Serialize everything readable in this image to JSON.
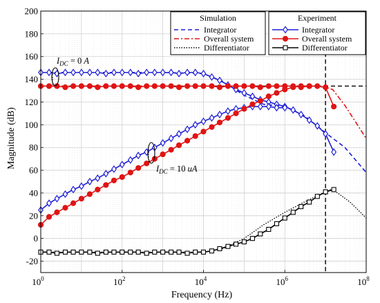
{
  "chart_data": {
    "type": "line",
    "xlabel": "Frequency (Hz)",
    "ylabel": "Magnitude (dB)",
    "xscale": "log",
    "xlim": [
      1,
      100000000
    ],
    "ylim": [
      -30,
      200
    ],
    "x_ticks": [
      {
        "value": 1,
        "base": "10",
        "exp": "0"
      },
      {
        "value": 100,
        "base": "10",
        "exp": "2"
      },
      {
        "value": 10000,
        "base": "10",
        "exp": "4"
      },
      {
        "value": 1000000,
        "base": "10",
        "exp": "6"
      },
      {
        "value": 100000000,
        "base": "10",
        "exp": "8"
      }
    ],
    "y_ticks": [
      "-20",
      "0",
      "20",
      "40",
      "60",
      "80",
      "100",
      "120",
      "140",
      "160",
      "180",
      "200"
    ],
    "grid": true,
    "legends": [
      {
        "title": "Simulation",
        "position": "top-center",
        "entries": [
          "Integrator",
          "Overall system",
          "Differentiator"
        ]
      },
      {
        "title": "Experiment",
        "position": "top-right",
        "entries": [
          "Integrator",
          "Overall system",
          "Differentiator"
        ]
      }
    ],
    "annotations": [
      {
        "sub_var": "I",
        "sub": "DC",
        "eq": " = 0  ",
        "unit": "A",
        "x": 1.4,
        "y": 151
      },
      {
        "sub_var": "I",
        "sub": "DC",
        "eq": " = 10  ",
        "unit": "uA",
        "x": 800,
        "y": 54
      }
    ],
    "reference_lines": [
      {
        "orientation": "horizontal",
        "y": 134,
        "style": "dashed",
        "color": "#000000"
      },
      {
        "orientation": "vertical",
        "x": 10000000,
        "style": "dashed",
        "color": "#000000"
      }
    ],
    "series": [
      {
        "name": "Integrator",
        "group": "Simulation",
        "color": "#1f1fd6",
        "dash": "dashed",
        "marker": "none",
        "x": [
          1,
          10,
          100,
          1000,
          10000,
          30000,
          100000,
          300000,
          1000000,
          3000000,
          10000000,
          30000000,
          100000000
        ],
        "y": [
          146,
          146,
          146,
          146,
          145,
          138,
          126,
          118,
          116,
          108,
          93,
          80,
          58
        ]
      },
      {
        "name": "Overall system",
        "group": "Simulation",
        "color": "#e01414",
        "dash": "dashdot",
        "marker": "none",
        "x": [
          1,
          100,
          10000,
          1000000,
          5000000,
          10000000,
          15000000,
          30000000,
          100000000
        ],
        "y": [
          134,
          134,
          134,
          134,
          134,
          133,
          131,
          117,
          88
        ]
      },
      {
        "name": "Differentiator",
        "group": "Simulation",
        "color": "#000000",
        "dash": "dotted",
        "marker": "none",
        "x": [
          1,
          10,
          100,
          1000,
          10000,
          30000,
          100000,
          300000,
          1000000,
          3000000,
          10000000,
          13000000,
          20000000,
          40000000,
          100000000
        ],
        "y": [
          -12,
          -12,
          -12,
          -12,
          -12,
          -9,
          0,
          12,
          23,
          32,
          41,
          43,
          40,
          32,
          18
        ]
      },
      {
        "name": "Integrator",
        "group": "Experiment",
        "color": "#1f1fd6",
        "dash": "solid",
        "marker": "diamond",
        "x": [
          1,
          1.6,
          2.5,
          4,
          6.3,
          10,
          16,
          25,
          40,
          63,
          100,
          160,
          250,
          400,
          630,
          1000,
          1600,
          2500,
          4000,
          6300,
          10000,
          16000,
          25000,
          40000,
          63000,
          100000,
          160000,
          250000,
          400000,
          630000,
          1000000,
          1600000,
          2500000,
          4000000,
          6300000,
          10000000,
          16000000
        ],
        "y": [
          146,
          146,
          145,
          146,
          146,
          146,
          146,
          146,
          145,
          146,
          146,
          146,
          145,
          146,
          146,
          146,
          146,
          145,
          146,
          146,
          145,
          142,
          139,
          135,
          131,
          128,
          125,
          122,
          120,
          118,
          116,
          113,
          109,
          104,
          99,
          92,
          76
        ]
      },
      {
        "name": "Overall system",
        "group": "Experiment",
        "color": "#e01414",
        "dash": "solid",
        "marker": "circle",
        "x": [
          1,
          1.6,
          2.5,
          4,
          6.3,
          10,
          16,
          25,
          40,
          63,
          100,
          160,
          250,
          400,
          630,
          1000,
          1600,
          2500,
          4000,
          6300,
          10000,
          16000,
          25000,
          40000,
          63000,
          100000,
          160000,
          250000,
          400000,
          630000,
          1000000,
          1600000,
          2500000,
          4000000,
          6300000,
          10000000,
          16000000
        ],
        "y": [
          134,
          134,
          134,
          133,
          134,
          134,
          134,
          133,
          134,
          134,
          134,
          134,
          133,
          134,
          134,
          134,
          134,
          133,
          134,
          134,
          134,
          134,
          133,
          134,
          134,
          134,
          134,
          133,
          134,
          134,
          134,
          134,
          133,
          134,
          134,
          133,
          116
        ]
      },
      {
        "name": "Integrator",
        "group": "Experiment",
        "color": "#1f1fd6",
        "dash": "solid",
        "marker": "diamond",
        "x": [
          1,
          1.6,
          2.5,
          4,
          6.3,
          10,
          16,
          25,
          40,
          63,
          100,
          160,
          250,
          400,
          630,
          1000,
          1600,
          2500,
          4000,
          6300,
          10000,
          16000,
          25000,
          40000,
          63000,
          100000,
          160000,
          250000,
          400000,
          630000,
          1000000
        ],
        "y": [
          25,
          31,
          35,
          39,
          43,
          46,
          50,
          53,
          57,
          61,
          65,
          69,
          73,
          76,
          80,
          84,
          88,
          92,
          96,
          100,
          103,
          106,
          109,
          112,
          114,
          115,
          116,
          116,
          116,
          115,
          115
        ]
      },
      {
        "name": "Overall system",
        "group": "Experiment",
        "color": "#e01414",
        "dash": "solid",
        "marker": "circle",
        "x": [
          1,
          1.6,
          2.5,
          4,
          6.3,
          10,
          16,
          25,
          40,
          63,
          100,
          160,
          250,
          400,
          630,
          1000,
          1600,
          2500,
          4000,
          6300,
          10000,
          16000,
          25000,
          40000,
          63000,
          100000,
          160000,
          250000,
          400000,
          630000,
          1000000,
          1600000,
          2500000,
          4000000
        ],
        "y": [
          12,
          19,
          23,
          27,
          31,
          35,
          39,
          43,
          47,
          51,
          54,
          58,
          62,
          66,
          70,
          74,
          78,
          82,
          86,
          90,
          94,
          98,
          102,
          106,
          110,
          114,
          118,
          121,
          125,
          128,
          131,
          133,
          134,
          134
        ]
      },
      {
        "name": "Differentiator",
        "group": "Experiment",
        "color": "#000000",
        "dash": "solid",
        "marker": "square",
        "x": [
          1,
          1.6,
          2.5,
          4,
          6.3,
          10,
          16,
          25,
          40,
          63,
          100,
          160,
          250,
          400,
          630,
          1000,
          1600,
          2500,
          4000,
          6300,
          10000,
          16000,
          25000,
          40000,
          63000,
          100000,
          160000,
          250000,
          400000,
          630000,
          1000000,
          1600000,
          2500000,
          4000000,
          6300000,
          10000000,
          16000000
        ],
        "y": [
          -12,
          -12,
          -13,
          -12,
          -12,
          -12,
          -12,
          -13,
          -12,
          -12,
          -12,
          -12,
          -12,
          -13,
          -12,
          -12,
          -12,
          -12,
          -13,
          -12,
          -12,
          -11,
          -9,
          -7,
          -5,
          -3,
          0,
          4,
          8,
          13,
          18,
          23,
          28,
          32,
          37,
          41,
          43
        ]
      }
    ]
  }
}
